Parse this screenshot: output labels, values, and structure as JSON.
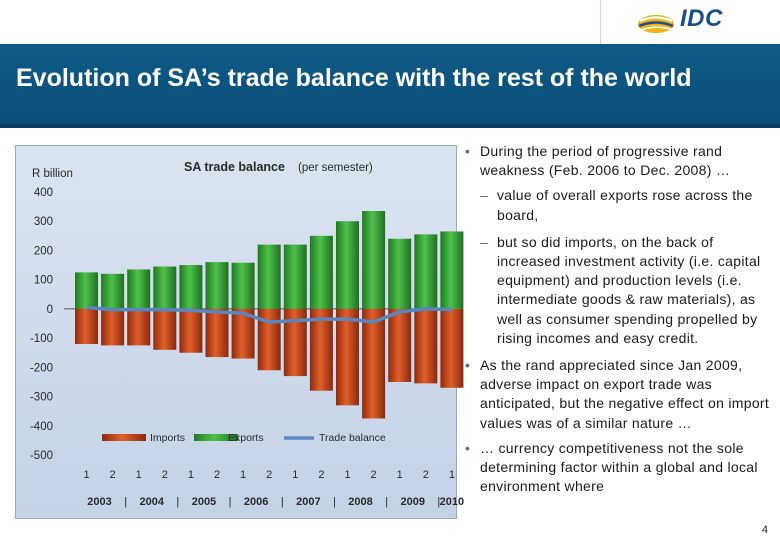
{
  "header": {
    "logo_text": "IDC",
    "title": "Evolution of SA’s trade balance with the rest of the world"
  },
  "chart_data": {
    "type": "bar",
    "title": "SA trade balance",
    "subtitle": "(per semester)",
    "ylabel": "R billion",
    "ylim": [
      -500,
      400
    ],
    "yticks": [
      400,
      300,
      200,
      100,
      0,
      -100,
      -200,
      -300,
      -400,
      -500
    ],
    "categories": [
      "1",
      "2",
      "1",
      "2",
      "1",
      "2",
      "1",
      "2",
      "1",
      "2",
      "1",
      "2",
      "1",
      "2",
      "1"
    ],
    "years": [
      "2003",
      "2004",
      "2005",
      "2006",
      "2007",
      "2008",
      "2009",
      "2010"
    ],
    "grid": false,
    "legend": "bottom",
    "series": [
      {
        "name": "Imports",
        "type": "bar",
        "color": "#c0401a",
        "values": [
          -120,
          -125,
          -125,
          -140,
          -150,
          -165,
          -170,
          -210,
          -230,
          -280,
          -330,
          -375,
          -250,
          -255,
          -270
        ]
      },
      {
        "name": "Exports",
        "type": "bar",
        "color": "#2f9a2c",
        "values": [
          125,
          120,
          135,
          145,
          150,
          160,
          158,
          220,
          220,
          250,
          300,
          335,
          240,
          255,
          265
        ]
      },
      {
        "name": "Trade balance",
        "type": "line",
        "color": "#5a86c0",
        "values": [
          5,
          -3,
          -2,
          -3,
          -5,
          -10,
          -15,
          -45,
          -40,
          -35,
          -35,
          -45,
          -10,
          0,
          -2
        ]
      }
    ]
  },
  "bullets": [
    {
      "level": 1,
      "marker": "•",
      "text": "During the period of progressive rand weakness (Feb. 2006 to  Dec. 2008) …"
    },
    {
      "level": 2,
      "marker": "–",
      "text": "value of overall exports rose across the board,"
    },
    {
      "level": 2,
      "marker": "–",
      "text": "but so did imports, on the back of increased investment  activity (i.e. capital equipment) and production levels (i.e. intermediate goods & raw materials), as well as consumer spending propelled by rising incomes and easy credit."
    },
    {
      "level": 1,
      "marker": "•",
      "text": "As the rand appreciated since Jan 2009, adverse impact on export trade was anticipated, but the negative effect on import values was of a similar nature …"
    },
    {
      "level": 1,
      "marker": "•",
      "text": "… currency competitiveness not the sole determining factor within a global and local environment where"
    }
  ],
  "footer": {
    "page_number": "4"
  }
}
